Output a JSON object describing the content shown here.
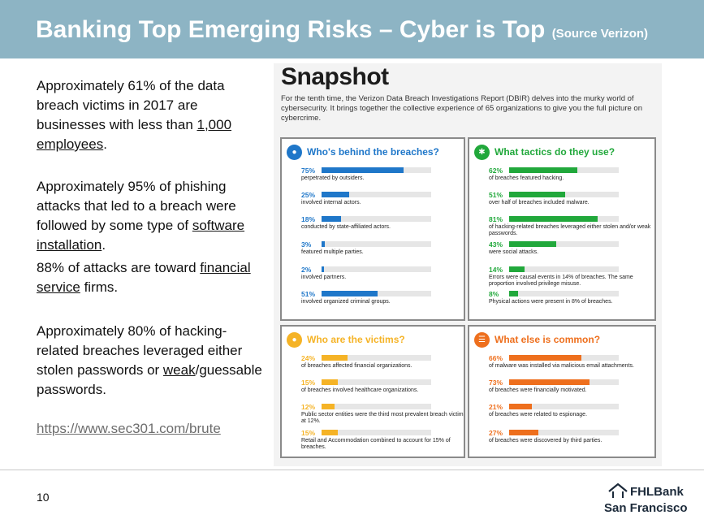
{
  "header": {
    "title": "Banking Top Emerging Risks – Cyber is Top",
    "source": "(Source Verizon)",
    "background": "#8db4c4"
  },
  "left_text": {
    "p1": {
      "text": "Approximately 61% of the data breach victims in 2017 are businesses with less than ",
      "link_text": "1,000 employees",
      "suffix": "."
    },
    "p2": {
      "text": "Approximately 95% of phishing attacks that led to a breach were followed by some type of ",
      "link_text": "software installation",
      "suffix": "."
    },
    "p3": {
      "text": "88% of attacks are toward ",
      "link_text": "financial service",
      "suffix": " firms."
    },
    "p4": {
      "prefix": "Approximately 80% of hacking-related breaches leveraged either stolen passwords or ",
      "link_text": "weak",
      "suffix": "/guessable passwords."
    },
    "url": "https://www.sec301.com/brute"
  },
  "snapshot": {
    "title": "Snapshot",
    "intro": "For the tenth time, the Verizon Data Breach Investigations Report (DBIR) delves into the murky world of cybersecurity. It brings together the collective experience of 65 organizations to give you the full picture on cybercrime."
  },
  "chart_data": [
    {
      "type": "bar",
      "title": "Who's behind the breaches?",
      "icon": "person-icon",
      "color": "#1f77c9",
      "categories": [
        "perpetrated by outsiders.",
        "involved internal actors.",
        "conducted by state-affiliated actors.",
        "featured multiple parties.",
        "involved partners.",
        "involved organized criminal groups."
      ],
      "labels": [
        "75%",
        "25%",
        "18%",
        "3%",
        "2%",
        "51%"
      ],
      "values": [
        75,
        25,
        18,
        3,
        2,
        51
      ],
      "ylim": [
        0,
        100
      ]
    },
    {
      "type": "bar",
      "title": "What tactics do they use?",
      "icon": "network-icon",
      "color": "#21a83b",
      "categories": [
        "of breaches featured hacking.",
        "over half of breaches included malware.",
        "of hacking-related breaches leveraged either stolen and/or weak passwords.",
        "were social attacks.",
        "Errors were causal events in 14% of breaches. The same proportion involved privilege misuse.",
        "Physical actions were present in 8% of breaches."
      ],
      "labels": [
        "62%",
        "51%",
        "81%",
        "43%",
        "14%",
        "8%"
      ],
      "values": [
        62,
        51,
        81,
        43,
        14,
        8
      ],
      "ylim": [
        0,
        100
      ]
    },
    {
      "type": "bar",
      "title": "Who are the victims?",
      "icon": "victim-icon",
      "color": "#f5b326",
      "categories": [
        "of breaches affected financial organizations.",
        "of breaches involved healthcare organizations.",
        "Public sector entities were the third most prevalent breach victim at 12%.",
        "Retail and Accommodation combined to account for 15% of breaches."
      ],
      "labels": [
        "24%",
        "15%",
        "12%",
        "15%"
      ],
      "values": [
        24,
        15,
        12,
        15
      ],
      "ylim": [
        0,
        100
      ]
    },
    {
      "type": "bar",
      "title": "What else is common?",
      "icon": "list-icon",
      "color": "#ee6f1d",
      "categories": [
        "of malware was installed via malicious email attachments.",
        "of breaches were financially motivated.",
        "of breaches were related to espionage.",
        "of breaches were discovered by third parties."
      ],
      "labels": [
        "66%",
        "73%",
        "21%",
        "27%"
      ],
      "values": [
        66,
        73,
        21,
        27
      ],
      "ylim": [
        0,
        100
      ]
    }
  ],
  "footer": {
    "page_number": "10",
    "logo_line1": "FHLBank",
    "logo_line2": "San Francisco"
  }
}
